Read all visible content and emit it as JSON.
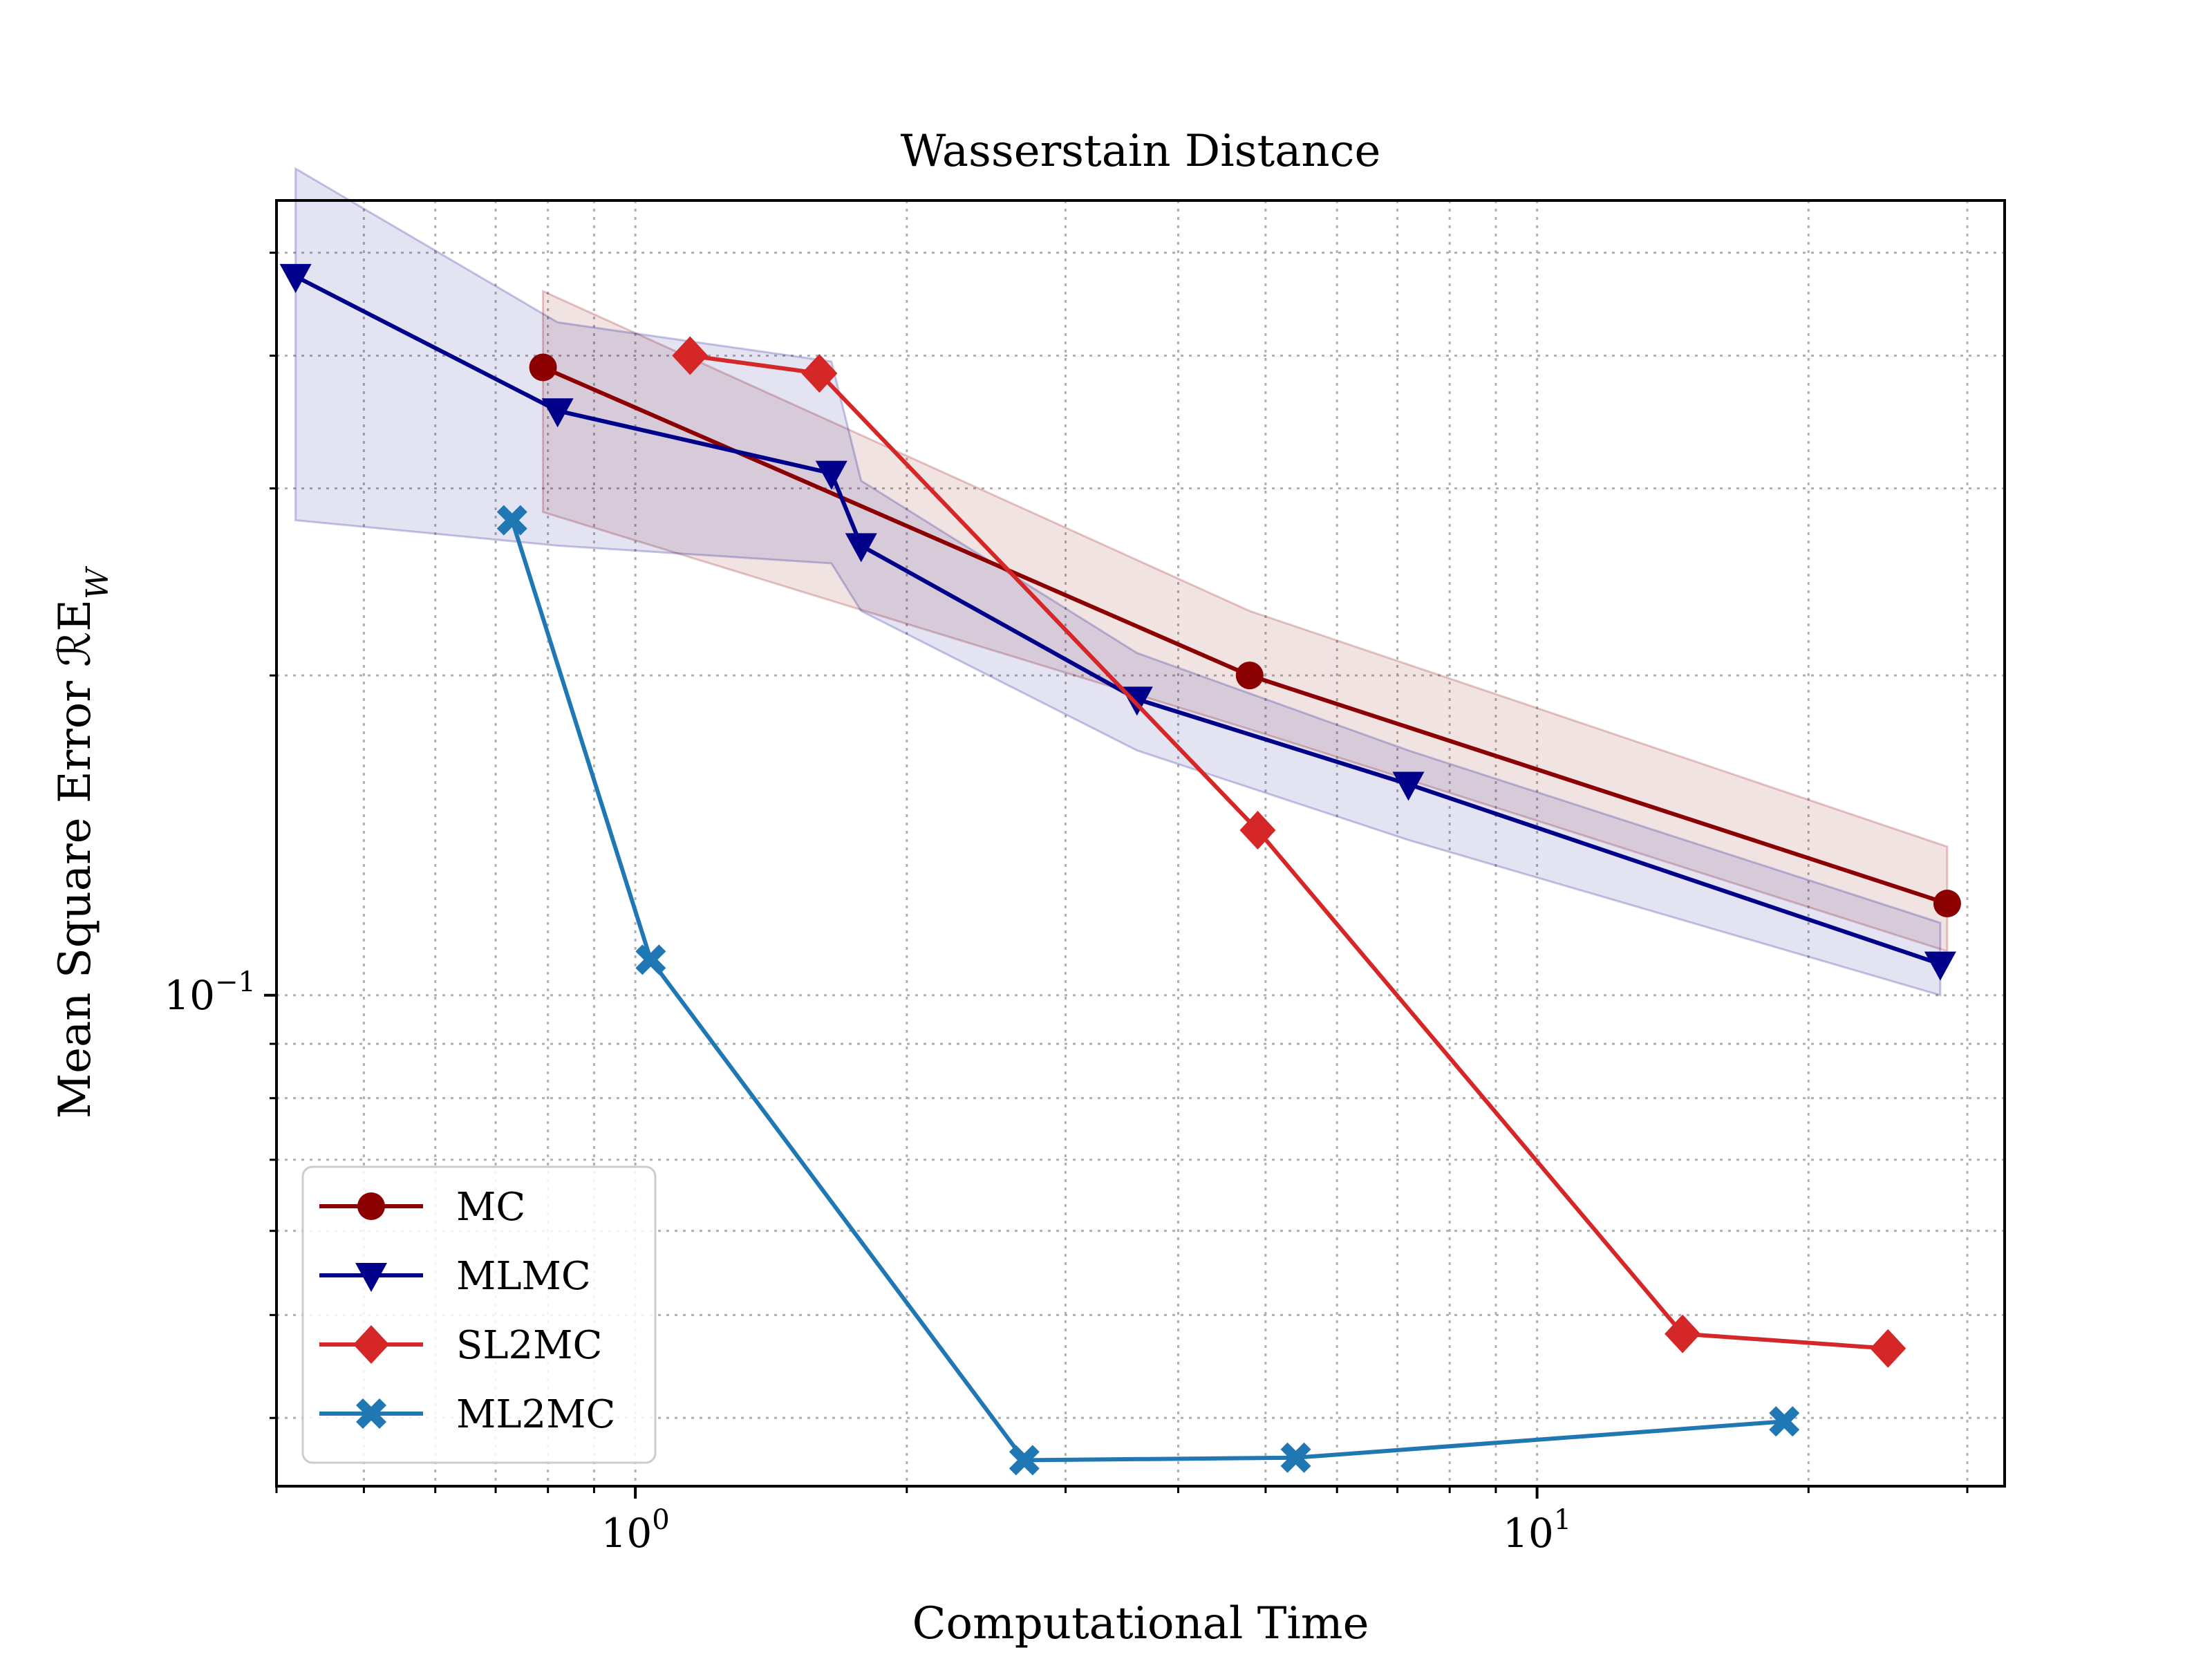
{
  "chart_data": {
    "type": "line",
    "title": "Wasserstain Distance",
    "xlabel": "Computational Time",
    "ylabel": "Mean Square Error ℛE",
    "ylabel_sub": "W",
    "xscale": "log",
    "yscale": "log",
    "xlim": [
      0.4,
      33
    ],
    "ylim": [
      0.0345,
      0.56
    ],
    "grid": true,
    "legend_position": "lower-left",
    "x_ticks": [
      {
        "value": 1,
        "base": "10",
        "exp": "0"
      },
      {
        "value": 10,
        "base": "10",
        "exp": "1"
      }
    ],
    "y_ticks": [
      {
        "value": 0.1,
        "base": "10",
        "exp": "−1"
      }
    ],
    "series": [
      {
        "name": "MC",
        "color": "#8b0000",
        "marker": "circle",
        "x": [
          0.79,
          4.8,
          28.5
        ],
        "y": [
          0.39,
          0.2,
          0.122
        ],
        "band_lower": [
          0.285,
          0.178,
          0.11
        ],
        "band_upper": [
          0.46,
          0.23,
          0.138
        ]
      },
      {
        "name": "MLMC",
        "color": "#00008b",
        "marker": "triangle-down",
        "x": [
          0.42,
          0.82,
          1.65,
          1.78,
          3.6,
          7.2,
          28.0
        ],
        "y": [
          0.475,
          0.355,
          0.31,
          0.265,
          0.19,
          0.158,
          0.107
        ],
        "band_lower": [
          0.28,
          0.265,
          0.255,
          0.23,
          0.17,
          0.14,
          0.1
        ],
        "band_upper": [
          0.6,
          0.43,
          0.395,
          0.305,
          0.21,
          0.17,
          0.117
        ]
      },
      {
        "name": "SL2MC",
        "color": "#d62728",
        "marker": "diamond",
        "x": [
          1.15,
          1.6,
          4.9,
          14.5,
          24.5
        ],
        "y": [
          0.4,
          0.385,
          0.143,
          0.048,
          0.0465
        ],
        "band_lower": [],
        "band_upper": []
      },
      {
        "name": "ML2MC",
        "color": "#1f77b4",
        "marker": "x-filled",
        "x": [
          0.73,
          1.04,
          2.7,
          5.4,
          18.8
        ],
        "y": [
          0.28,
          0.108,
          0.0365,
          0.0367,
          0.0397
        ],
        "band_lower": [],
        "band_upper": []
      }
    ]
  }
}
